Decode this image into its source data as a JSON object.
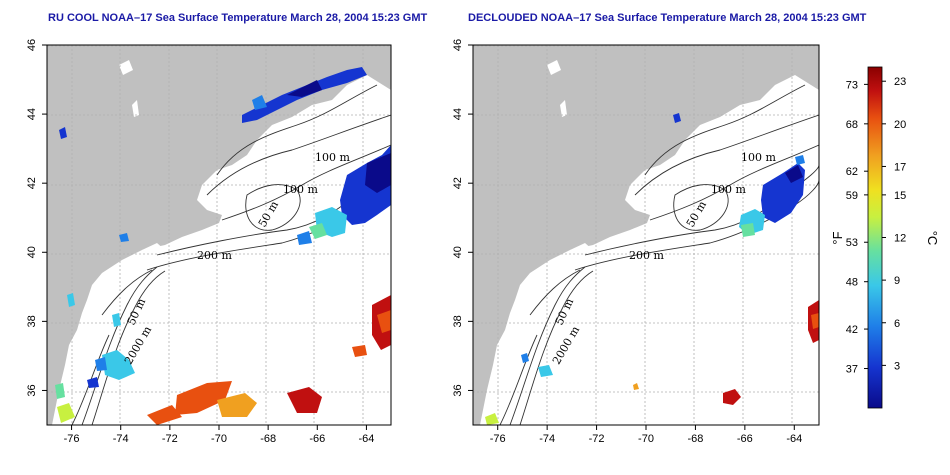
{
  "panels": [
    {
      "id": "left",
      "title": "RU COOL NOAA–17 Sea Surface Temperature March 28, 2004 15:23 GMT",
      "variant": "cool"
    },
    {
      "id": "right",
      "title": "DECLOUDED NOAA–17 Sea Surface Temperature March 28, 2004 15:23 GMT",
      "variant": "declouded"
    }
  ],
  "map": {
    "lon_range": [
      -77,
      -63
    ],
    "lat_range": [
      35,
      46
    ],
    "x_ticks": [
      "-76",
      "-74",
      "-72",
      "-70",
      "-68",
      "-66",
      "-64"
    ],
    "y_ticks": [
      "36",
      "38",
      "40",
      "42",
      "44",
      "46"
    ],
    "contour_labels": [
      "100 m",
      "100 m",
      "50 m",
      "200 m",
      "50 m",
      "2000 m"
    ],
    "colors": {
      "land": "#c0c0c0",
      "ocean": "#ffffff",
      "grid": "#b0b0b0",
      "contour": "#333333"
    }
  },
  "colorbar": {
    "fahrenheit_ticks": [
      "73",
      "68",
      "62",
      "59",
      "53",
      "48",
      "42",
      "37"
    ],
    "celsius_ticks": [
      "23",
      "20",
      "17",
      "15",
      "12",
      "9",
      "6",
      "3"
    ],
    "unit_f": "°F",
    "unit_c": "°C",
    "range_c": [
      0,
      24
    ],
    "colors": [
      "#0a0a8a",
      "#1535d0",
      "#1f7fe8",
      "#3ac8e8",
      "#66e0a0",
      "#c8f040",
      "#f0e020",
      "#f0a020",
      "#e85010",
      "#c01010",
      "#8a0000"
    ]
  }
}
